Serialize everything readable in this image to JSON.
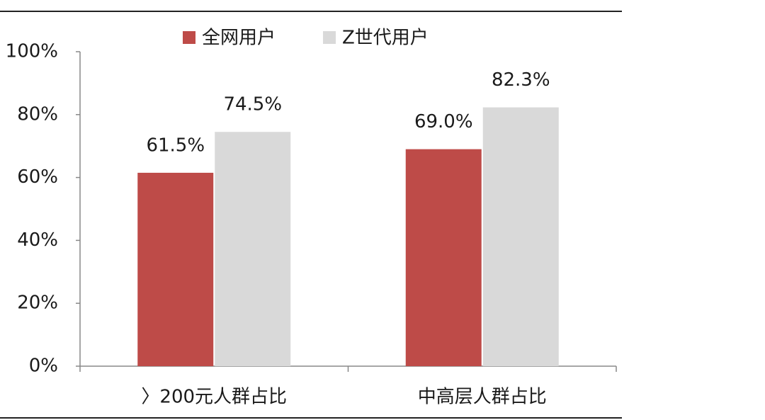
{
  "chart_data": {
    "type": "bar",
    "categories": [
      "〉200元人群占比",
      "中高层人群占比"
    ],
    "series": [
      {
        "name": "全网用户",
        "color": "#be4b48",
        "values": [
          61.5,
          69.0
        ],
        "value_labels": [
          "61.5%",
          "69.0%"
        ]
      },
      {
        "name": "Z世代用户",
        "color": "#d9d9d9",
        "values": [
          74.5,
          82.3
        ],
        "value_labels": [
          "74.5%",
          "82.3%"
        ]
      }
    ],
    "ylim": [
      0,
      100
    ],
    "yticks": [
      {
        "value": 0,
        "label": "0%"
      },
      {
        "value": 20,
        "label": "20%"
      },
      {
        "value": 40,
        "label": "40%"
      },
      {
        "value": 60,
        "label": "60%"
      },
      {
        "value": 80,
        "label": "80%"
      },
      {
        "value": 100,
        "label": "100%"
      }
    ],
    "legend": "top"
  }
}
